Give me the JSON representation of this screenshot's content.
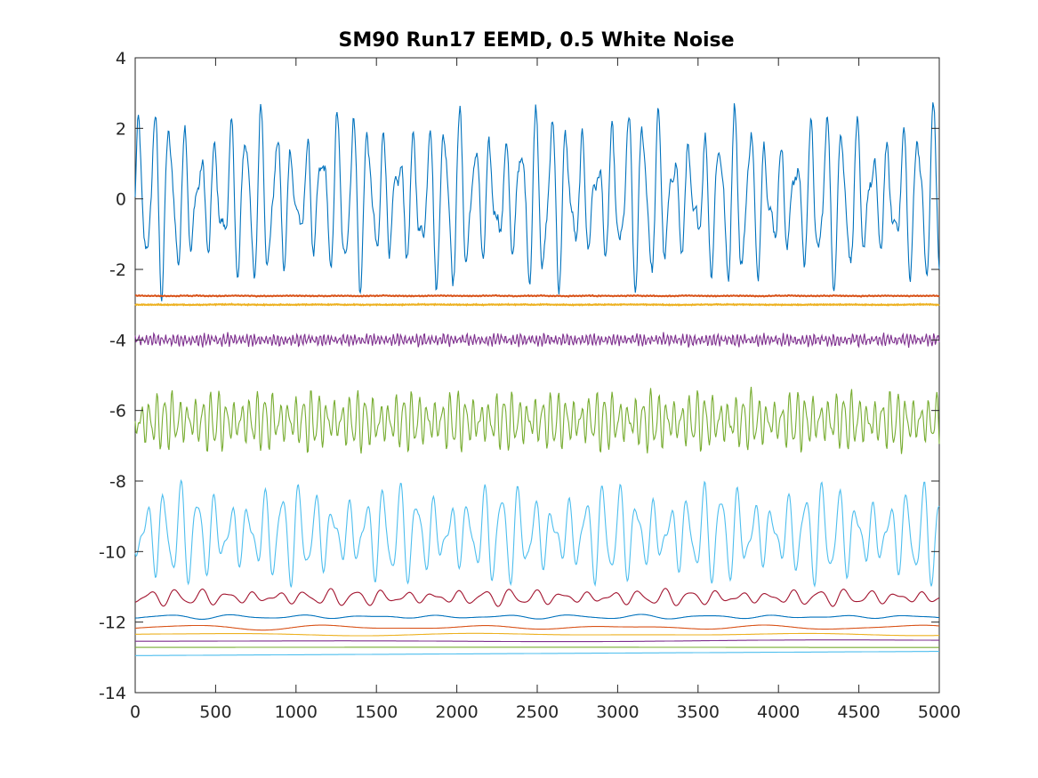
{
  "chart_data": {
    "type": "line",
    "title": "SM90 Run17 EEMD, 0.5 White Noise",
    "xlabel": "",
    "ylabel": "",
    "xlim": [
      0,
      5000
    ],
    "ylim": [
      -14,
      4
    ],
    "x_ticks": [
      0,
      500,
      1000,
      1500,
      2000,
      2500,
      3000,
      3500,
      4000,
      4500,
      5000
    ],
    "y_ticks": [
      4,
      2,
      0,
      -2,
      -4,
      -6,
      -8,
      -10,
      -12,
      -14
    ],
    "x_tick_labels": [
      "0",
      "500",
      "1000",
      "1500",
      "2000",
      "2500",
      "3000",
      "3500",
      "4000",
      "4500",
      "5000"
    ],
    "y_tick_labels": [
      "4",
      "2",
      "0",
      "-2",
      "-4",
      "-6",
      "-8",
      "-10",
      "-12",
      "-14"
    ],
    "grid": false,
    "legend": "none",
    "series": [
      {
        "color": "#0072BD",
        "offset": 0.0,
        "amp": 1.6,
        "period": 95,
        "noise": 0.35,
        "trend": 0
      },
      {
        "color": "#D95319",
        "offset": -2.75,
        "amp": 0.01,
        "period": 4,
        "noise": 0.01,
        "trend": 0
      },
      {
        "color": "#EDB120",
        "offset": -3.0,
        "amp": 0.01,
        "period": 8,
        "noise": 0.01,
        "trend": 0
      },
      {
        "color": "#7E2F8E",
        "offset": -4.0,
        "amp": 0.12,
        "period": 24,
        "noise": 0.05,
        "trend": 0
      },
      {
        "color": "#77AC30",
        "offset": -6.3,
        "amp": 0.55,
        "period": 48,
        "noise": 0.08,
        "trend": 0
      },
      {
        "color": "#4DBEEE",
        "offset": -9.5,
        "amp": 0.9,
        "period": 105,
        "noise": 0.05,
        "trend": 0
      },
      {
        "color": "#A2142F",
        "offset": -11.3,
        "amp": 0.15,
        "period": 160,
        "noise": 0.0,
        "trend": 0
      },
      {
        "color": "#0072BD",
        "offset": -11.85,
        "amp": 0.04,
        "period": 420,
        "noise": 0.0,
        "trend": 0
      },
      {
        "color": "#D95319",
        "offset": -12.15,
        "amp": 0.05,
        "period": 900,
        "noise": 0.0,
        "trend": 0
      },
      {
        "color": "#EDB120",
        "offset": -12.35,
        "amp": 0.03,
        "period": 1800,
        "noise": 0.0,
        "trend": 0
      },
      {
        "color": "#7E2F8E",
        "offset": -12.55,
        "amp": 0.02,
        "period": 4000,
        "noise": 0.0,
        "trend": 0.03
      },
      {
        "color": "#77AC30",
        "offset": -12.72,
        "amp": 0.01,
        "period": 9000,
        "noise": 0.0,
        "trend": 0.01
      },
      {
        "color": "#4DBEEE",
        "offset": -12.95,
        "amp": 0.0,
        "period": 10000,
        "noise": 0.0,
        "trend": 0.12
      }
    ]
  }
}
